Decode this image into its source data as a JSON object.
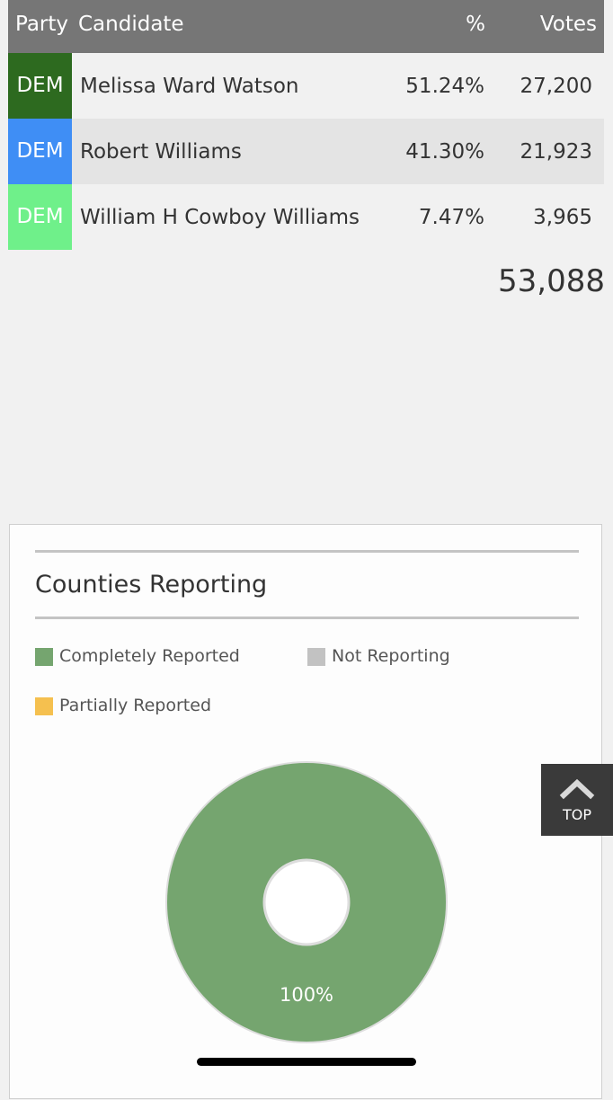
{
  "results_table": {
    "headers": {
      "party": "Party",
      "candidate": "Candidate",
      "percent": "%",
      "votes": "Votes"
    },
    "rows": [
      {
        "party": "DEM",
        "party_color": "#2d6a1f",
        "name": "Melissa Ward Watson",
        "percent": "51.24%",
        "votes": "27,200"
      },
      {
        "party": "DEM",
        "party_color": "#3f8ef5",
        "name": "Robert Williams",
        "percent": "41.30%",
        "votes": "21,923"
      },
      {
        "party": "DEM",
        "party_color": "#6ff08a",
        "name": "William H Cowboy Williams",
        "percent": "7.47%",
        "votes": "3,965"
      }
    ],
    "total_votes": "53,088"
  },
  "counties": {
    "title": "Counties Reporting",
    "legend": [
      {
        "label": "Completely Reported",
        "color": "#75a56f"
      },
      {
        "label": "Not Reporting",
        "color": "#c2c2c2"
      },
      {
        "label": "Partially Reported",
        "color": "#f5c04f"
      }
    ]
  },
  "chart_data": {
    "type": "pie",
    "categories": [
      "Completely Reported",
      "Not Reporting",
      "Partially Reported"
    ],
    "values": [
      100,
      0,
      0
    ],
    "data_labels": [
      "100%"
    ],
    "colors": [
      "#75a56f",
      "#c2c2c2",
      "#f5c04f"
    ]
  },
  "top_button": {
    "label": "TOP",
    "icon": "chevron-up-icon"
  }
}
